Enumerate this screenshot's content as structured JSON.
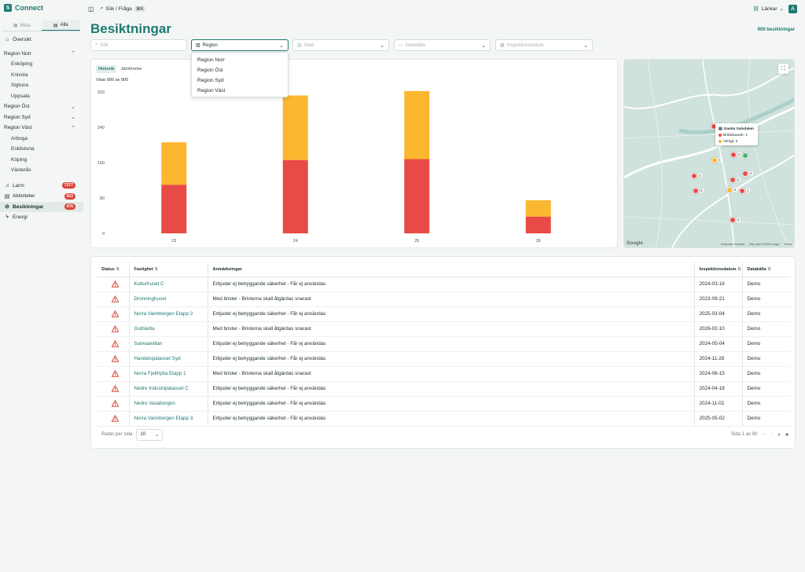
{
  "app": {
    "name": "Connect",
    "logo_glyph": "S"
  },
  "sidebar": {
    "segments": [
      {
        "label": "Mina",
        "active": false
      },
      {
        "label": "Alla",
        "active": true
      }
    ],
    "items": [
      {
        "label": "Översikt",
        "type": "top",
        "icon": "home-icon"
      },
      {
        "label": "Region Norr",
        "type": "group",
        "expanded": true
      },
      {
        "label": "Enköping",
        "type": "sub"
      },
      {
        "label": "Knivsta",
        "type": "sub"
      },
      {
        "label": "Sigtuna",
        "type": "sub"
      },
      {
        "label": "Uppsala",
        "type": "sub"
      },
      {
        "label": "Region Öst",
        "type": "group",
        "expanded": false
      },
      {
        "label": "Region Syd",
        "type": "group",
        "expanded": false
      },
      {
        "label": "Region Väst",
        "type": "group",
        "expanded": true
      },
      {
        "label": "Arboga",
        "type": "sub"
      },
      {
        "label": "Eskilstuna",
        "type": "sub"
      },
      {
        "label": "Köping",
        "type": "sub"
      },
      {
        "label": "Västerås",
        "type": "sub"
      },
      {
        "label": "Larm",
        "type": "top",
        "icon": "bell-icon",
        "badge": "7377"
      },
      {
        "label": "Aktiviteter",
        "type": "top",
        "icon": "clipboard-icon",
        "badge": "922"
      },
      {
        "label": "Besiktningar",
        "type": "top",
        "icon": "check-circle-icon",
        "badge": "476",
        "active": true
      },
      {
        "label": "Energi",
        "type": "top",
        "icon": "bolt-icon"
      }
    ]
  },
  "topbar": {
    "search_label": "Sök / Fråga",
    "shortcut": "⌘K",
    "links_label": "Länkar",
    "avatar_initial": "A"
  },
  "page": {
    "title": "Besiktningar",
    "count_label": "900 besiktningar"
  },
  "filters": {
    "search_placeholder": "Sök",
    "region_value": "Region",
    "city_placeholder": "Stad",
    "source_placeholder": "Datakälla",
    "date_placeholder": "Inspektionsdatum"
  },
  "region_options": [
    "Region Norr",
    "Region Öst",
    "Region Syd",
    "Region Väst"
  ],
  "chart_tabs": [
    {
      "label": "Historik",
      "active": true
    },
    {
      "label": "Jämförelse",
      "active": false
    }
  ],
  "chart_caption": "Visar 900 av 900",
  "chart_data": {
    "type": "bar",
    "stacked": true,
    "categories": [
      "23",
      "24",
      "25",
      "26"
    ],
    "series": [
      {
        "color": "#e84b45",
        "values": [
          110,
          166,
          168,
          38
        ]
      },
      {
        "color": "#fbb72f",
        "values": [
          96,
          146,
          154,
          37
        ]
      }
    ],
    "yticks": [
      0,
      80,
      160,
      240,
      320
    ],
    "ylim": [
      0,
      320
    ],
    "grid": false
  },
  "map": {
    "popup_title": "Gamla Salvdalen",
    "popup_lines": [
      {
        "label": "Brådskande: 1",
        "color": "#e84b45"
      },
      {
        "label": "Viktigt: 2",
        "color": "#fbb72f"
      }
    ],
    "markers": [
      {
        "label": "3"
      },
      {
        "label": "2"
      },
      {
        "label": "4"
      },
      {
        "label": "2"
      },
      {
        "label": "4"
      },
      {
        "label": "6"
      },
      {
        "label": "2"
      },
      {
        "label": "1"
      },
      {
        "label": "3"
      }
    ],
    "attribution": [
      "Keyboard shortcuts",
      "Map data ©2026 Google",
      "Terms"
    ],
    "google_logo": "Google"
  },
  "table": {
    "headers": [
      "Status",
      "Fastighet",
      "Anmärkningar",
      "Inspektionsdatum",
      "Datakälla"
    ],
    "rows": [
      [
        "Kulturhuset C",
        "Erbjuder ej betryggande säkerhet - Får ej användas",
        "2024-03-16",
        "Demo"
      ],
      [
        "Dronninghuset",
        "Med brister - Bristerna skall åtgärdas snarast",
        "2023-09-21",
        "Demo"
      ],
      [
        "Norra Vannborgen Etapp 3",
        "Erbjuder ej betryggande säkerhet - Får ej användas",
        "2025-03-04",
        "Demo"
      ],
      [
        "Gullsletta",
        "Med brister - Bristerna skall åtgärdas snarast",
        "2026-02-10",
        "Demo"
      ],
      [
        "Saimaavillan",
        "Erbjuder ej betryggande säkerhet - Får ej användas",
        "2024-05-04",
        "Demo"
      ],
      [
        "Handelspalasset Syd",
        "Erbjuder ej betryggande säkerhet - Får ej användas",
        "2024-11-28",
        "Demo"
      ],
      [
        "Norra Fjellhytta Etapp 1",
        "Med brister - Bristerna skall åtgärdas snarast",
        "2024-06-15",
        "Demo"
      ],
      [
        "Nedre Industripalasset C",
        "Erbjuder ej betryggande säkerhet - Får ej användas",
        "2024-04-18",
        "Demo"
      ],
      [
        "Nedre Vasaborgen",
        "Erbjuder ej betryggande säkerhet - Får ej användas",
        "2024-11-02",
        "Demo"
      ],
      [
        "Norra Vannborgen Etapp 3",
        "Erbjuder ej betryggande säkerhet - Får ej användas",
        "2025-05-02",
        "Demo"
      ]
    ]
  },
  "pager": {
    "rows_label": "Rader per sida",
    "rows_value": "10",
    "page_label": "Sida 1 av 90"
  }
}
